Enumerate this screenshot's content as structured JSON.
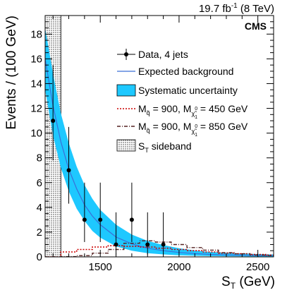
{
  "chart_data": {
    "type": "line",
    "lumi_label": "19.7 fb",
    "lumi_sup": "-1",
    "lumi_energy": " (8 TeV)",
    "experiment": "CMS",
    "xlabel": "S",
    "xlabel_sub": "T",
    "xlabel_unit": " (GeV)",
    "ylabel": "Events / (100 GeV)",
    "xlim": [
      1150,
      2600
    ],
    "ylim": [
      0,
      19.5
    ],
    "x_ticks": [
      1500,
      2000,
      2500
    ],
    "y_ticks": [
      0,
      2,
      4,
      6,
      8,
      10,
      12,
      14,
      16,
      18
    ],
    "sideband": [
      1150,
      1250
    ],
    "legend": {
      "placement": "top-right",
      "data_label": "Data, 4 jets",
      "background_label": "Expected background",
      "syst_label": "Systematic uncertainty",
      "sig1": {
        "m_main": "M",
        "m_main_sub": "q̃",
        "eq1": " = 900, ",
        "m_lsp": "M",
        "m_lsp_sub": "χ̃",
        "m_lsp_sup": "0",
        "m_lsp_idx": "1",
        "eq2": " = 450 GeV"
      },
      "sig2": {
        "m_main": "M",
        "m_main_sub": "q̃",
        "eq1": " = 900, ",
        "m_lsp": "M",
        "m_lsp_sub": "χ̃",
        "m_lsp_sup": "0",
        "m_lsp_idx": "1",
        "eq2": " = 850 GeV"
      },
      "sideband_label": "S",
      "sideband_sub": "T",
      "sideband_rest": " sideband"
    },
    "colors": {
      "data": "#000000",
      "background": "#3a6fd8",
      "syst_band": "#1ec8ff",
      "sig1": "#cc0000",
      "sig2": "#552222"
    },
    "data_points": [
      {
        "x": 1200,
        "y": 11.0,
        "ylo": 7.8,
        "yhi": 15.5
      },
      {
        "x": 1300,
        "y": 7.0,
        "ylo": 4.3,
        "yhi": 10.5
      },
      {
        "x": 1400,
        "y": 3.0,
        "ylo": 1.2,
        "yhi": 6.0
      },
      {
        "x": 1500,
        "y": 3.0,
        "ylo": 1.2,
        "yhi": 6.0
      },
      {
        "x": 1600,
        "y": 1.0,
        "ylo": 0.2,
        "yhi": 3.6
      },
      {
        "x": 1700,
        "y": 3.0,
        "ylo": 1.2,
        "yhi": 6.0
      },
      {
        "x": 1800,
        "y": 1.0,
        "ylo": 0.2,
        "yhi": 3.6
      },
      {
        "x": 1900,
        "y": 1.0,
        "ylo": 0.2,
        "yhi": 3.6
      }
    ],
    "background_curve": [
      {
        "x": 1150,
        "y": 16.0
      },
      {
        "x": 1200,
        "y": 12.2
      },
      {
        "x": 1250,
        "y": 9.3
      },
      {
        "x": 1300,
        "y": 7.1
      },
      {
        "x": 1350,
        "y": 5.5
      },
      {
        "x": 1400,
        "y": 4.2
      },
      {
        "x": 1450,
        "y": 3.3
      },
      {
        "x": 1500,
        "y": 2.6
      },
      {
        "x": 1600,
        "y": 1.6
      },
      {
        "x": 1700,
        "y": 1.05
      },
      {
        "x": 1800,
        "y": 0.7
      },
      {
        "x": 1900,
        "y": 0.5
      },
      {
        "x": 2000,
        "y": 0.36
      },
      {
        "x": 2100,
        "y": 0.27
      },
      {
        "x": 2200,
        "y": 0.2
      },
      {
        "x": 2300,
        "y": 0.16
      },
      {
        "x": 2400,
        "y": 0.13
      },
      {
        "x": 2500,
        "y": 0.11
      },
      {
        "x": 2600,
        "y": 0.1
      }
    ],
    "syst_band": [
      {
        "x": 1150,
        "lo": 13.5,
        "hi": 18.5
      },
      {
        "x": 1200,
        "lo": 9.8,
        "hi": 14.8
      },
      {
        "x": 1250,
        "lo": 7.2,
        "hi": 11.6
      },
      {
        "x": 1300,
        "lo": 5.3,
        "hi": 9.2
      },
      {
        "x": 1350,
        "lo": 3.9,
        "hi": 7.3
      },
      {
        "x": 1400,
        "lo": 2.9,
        "hi": 5.8
      },
      {
        "x": 1450,
        "lo": 2.1,
        "hi": 4.7
      },
      {
        "x": 1500,
        "lo": 1.55,
        "hi": 3.8
      },
      {
        "x": 1600,
        "lo": 0.85,
        "hi": 2.6
      },
      {
        "x": 1700,
        "lo": 0.5,
        "hi": 1.8
      },
      {
        "x": 1800,
        "lo": 0.3,
        "hi": 1.3
      },
      {
        "x": 1900,
        "lo": 0.2,
        "hi": 0.95
      },
      {
        "x": 2000,
        "lo": 0.13,
        "hi": 0.7
      },
      {
        "x": 2100,
        "lo": 0.09,
        "hi": 0.52
      },
      {
        "x": 2200,
        "lo": 0.06,
        "hi": 0.4
      },
      {
        "x": 2300,
        "lo": 0.05,
        "hi": 0.32
      },
      {
        "x": 2400,
        "lo": 0.04,
        "hi": 0.27
      },
      {
        "x": 2500,
        "lo": 0.03,
        "hi": 0.23
      },
      {
        "x": 2600,
        "lo": 0.03,
        "hi": 0.2
      }
    ],
    "signal_450": {
      "edges": [
        1150,
        1250,
        1350,
        1450,
        1550,
        1650,
        1750,
        1850,
        1950,
        2050,
        2150,
        2250,
        2350,
        2450,
        2550,
        2600
      ],
      "values": [
        0.0,
        0.4,
        0.6,
        0.8,
        0.9,
        0.85,
        0.8,
        0.7,
        0.6,
        0.5,
        0.4,
        0.3,
        0.25,
        0.2,
        0.15
      ]
    },
    "signal_850": {
      "edges": [
        1150,
        1250,
        1350,
        1450,
        1550,
        1650,
        1750,
        1850,
        1950,
        2050,
        2150,
        2250,
        2350,
        2450,
        2550,
        2600
      ],
      "values": [
        0.0,
        0.02,
        0.1,
        0.3,
        0.6,
        1.1,
        1.3,
        1.2,
        1.0,
        0.75,
        0.55,
        0.35,
        0.25,
        0.15,
        0.1
      ]
    }
  }
}
